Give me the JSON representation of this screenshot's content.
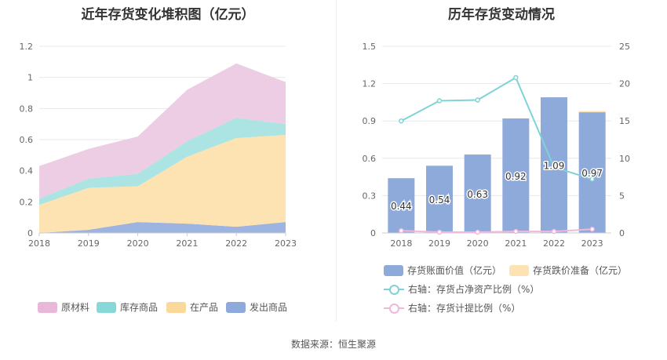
{
  "footer": "数据来源：恒生聚源",
  "chart_data": [
    {
      "type": "area",
      "title": "近年存货变化堆积图（亿元）",
      "stacked": true,
      "categories": [
        "2018",
        "2019",
        "2020",
        "2021",
        "2022",
        "2023"
      ],
      "ylim": [
        0,
        1.2
      ],
      "yticks": [
        "0",
        "0.2",
        "0.4",
        "0.6",
        "0.8",
        "1",
        "1.2"
      ],
      "grid": true,
      "legend_position": "bottom",
      "series": [
        {
          "name": "发出商品",
          "color": "#9db4e0",
          "values": [
            0.0,
            0.02,
            0.07,
            0.06,
            0.04,
            0.07
          ]
        },
        {
          "name": "在产品",
          "color": "#fde3b1",
          "values": [
            0.18,
            0.27,
            0.23,
            0.43,
            0.57,
            0.56
          ]
        },
        {
          "name": "库存商品",
          "color": "#ace3e3",
          "values": [
            0.04,
            0.06,
            0.08,
            0.1,
            0.13,
            0.07
          ]
        },
        {
          "name": "原材料",
          "color": "#edcde4",
          "values": [
            0.21,
            0.19,
            0.24,
            0.33,
            0.35,
            0.27
          ]
        }
      ],
      "legend_order": [
        "原材料",
        "库存商品",
        "在产品",
        "发出商品"
      ],
      "legend_colors": {
        "原材料": "#e9b8d9",
        "库存商品": "#87d8d8",
        "在产品": "#fbd89b",
        "发出商品": "#8eaadb"
      }
    },
    {
      "type": "bar",
      "title": "历年存货变动情况",
      "categories": [
        "2018",
        "2019",
        "2020",
        "2021",
        "2022",
        "2023"
      ],
      "ylim_left": [
        0,
        1.5
      ],
      "yticks_left": [
        "0",
        "0.3",
        "0.6",
        "0.9",
        "1.2",
        "1.5"
      ],
      "ylim_right": [
        0,
        25
      ],
      "yticks_right": [
        "0",
        "5",
        "10",
        "15",
        "20",
        "25"
      ],
      "grid": true,
      "legend_position": "bottom",
      "bars": [
        {
          "name": "存货账面价值（亿元）",
          "color": "#8eaadb",
          "values": [
            0.44,
            0.54,
            0.63,
            0.92,
            1.09,
            0.97
          ],
          "labels": [
            "0.44",
            "0.54",
            "0.63",
            "0.92",
            "1.09",
            "0.97"
          ]
        },
        {
          "name": "存货跌价准备（亿元）",
          "color": "#fde3b1",
          "values": [
            0,
            0,
            0,
            0,
            0,
            0.01
          ]
        }
      ],
      "lines": [
        {
          "name": "右轴：存货占净资产比例（%）",
          "color": "#7fd3d6",
          "axis": "right",
          "values": [
            15.0,
            17.7,
            17.8,
            20.8,
            8.8,
            7.2
          ]
        },
        {
          "name": "右轴：存货计提比例（%）",
          "color": "#f0b8dc",
          "axis": "right",
          "values": [
            0.3,
            0.1,
            0.1,
            0.2,
            0.2,
            0.5
          ]
        }
      ]
    }
  ]
}
